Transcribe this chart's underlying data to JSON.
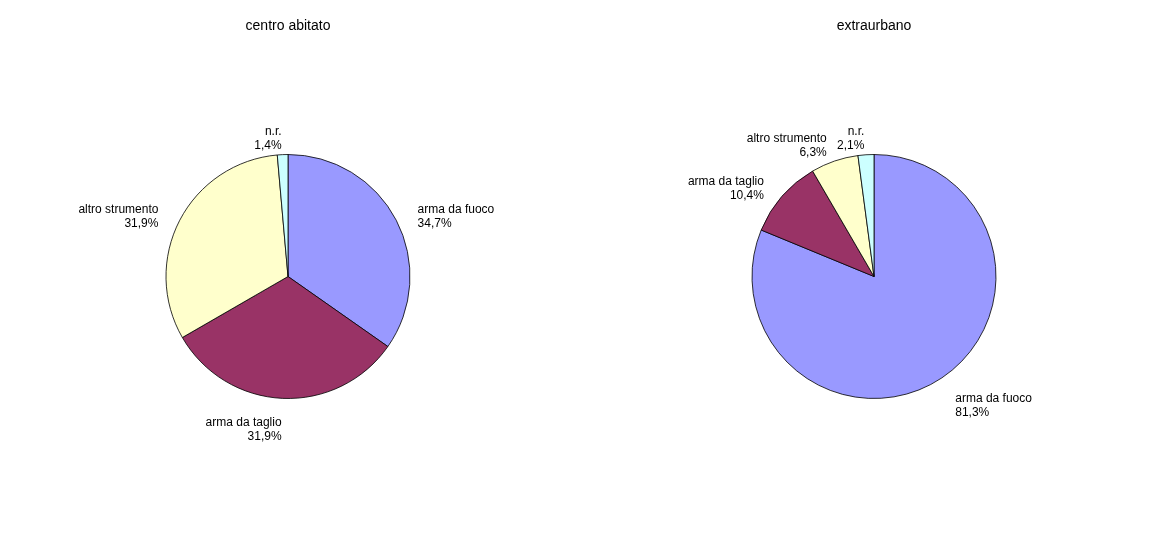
{
  "chart_data": [
    {
      "type": "pie",
      "title": "centro abitato",
      "categories": [
        "arma da fuoco",
        "arma da taglio",
        "altro strumento",
        "n.r."
      ],
      "values": [
        34.7,
        31.9,
        31.9,
        1.4
      ],
      "value_labels": [
        "34,7%",
        "31,9%",
        "31,9%",
        "1,4%"
      ],
      "colors": [
        "#9999ff",
        "#993366",
        "#ffffcc",
        "#ccffff"
      ]
    },
    {
      "type": "pie",
      "title": "extraurbano",
      "categories": [
        "arma da fuoco",
        "arma da taglio",
        "altro strumento",
        "n.r."
      ],
      "values": [
        81.3,
        10.4,
        6.3,
        2.1
      ],
      "value_labels": [
        "81,3%",
        "10,4%",
        "6,3%",
        "2,1%"
      ],
      "colors": [
        "#9999ff",
        "#993366",
        "#ffffcc",
        "#ccffff"
      ]
    }
  ]
}
